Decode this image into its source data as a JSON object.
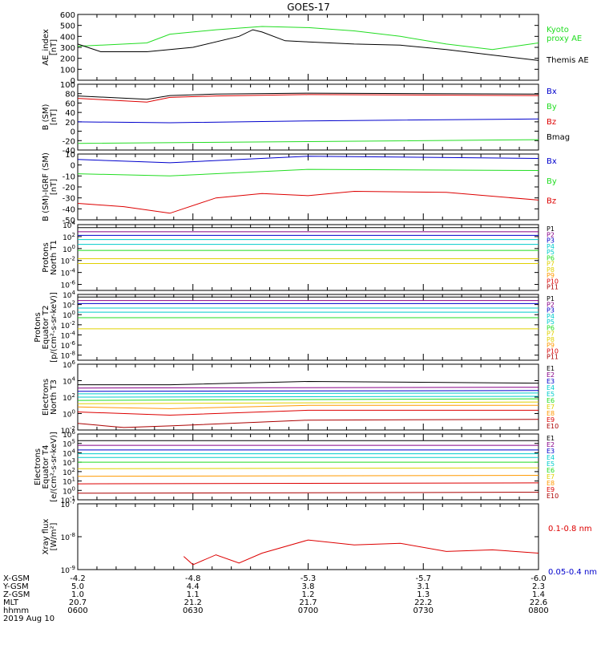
{
  "title": "GOES-17",
  "x_ticks": [
    "0600",
    "0630",
    "0700",
    "0730",
    "0800"
  ],
  "footer": {
    "rows": [
      {
        "label": "X-GSM",
        "values": [
          "-4.2",
          "-4.8",
          "-5.3",
          "-5.7",
          "-6.0"
        ]
      },
      {
        "label": "Y-GSM",
        "values": [
          "5.0",
          "4.4",
          "3.8",
          "3.1",
          "2.3"
        ]
      },
      {
        "label": "Z-GSM",
        "values": [
          "1.0",
          "1.1",
          "1.2",
          "1.3",
          "1.4"
        ]
      },
      {
        "label": "MLT",
        "values": [
          "20.7",
          "21.2",
          "21.7",
          "22.2",
          "22.6"
        ]
      },
      {
        "label": "hhmm",
        "values": [
          "0600",
          "0630",
          "0700",
          "0730",
          "0800"
        ]
      }
    ],
    "date": "2019 Aug 10"
  },
  "colors": {
    "black": "#000000",
    "green": "#22dd22",
    "blue": "#0000cc",
    "red": "#dd0000",
    "purple": "#880088",
    "cyan": "#00cccc",
    "yellow": "#e0d000",
    "orange": "#ff9900",
    "dkred": "#aa0000"
  },
  "chart_data": [
    {
      "type": "line",
      "ylabel": "AE_index\n[nT]",
      "ylim": [
        0,
        600
      ],
      "yticks": [
        "600",
        "500",
        "400",
        "300",
        "200",
        "100",
        "0"
      ],
      "series": [
        {
          "name": "Kyoto\nproxy AE",
          "color": "#22dd22",
          "x": [
            0,
            0.05,
            0.15,
            0.2,
            0.3,
            0.4,
            0.5,
            0.6,
            0.7,
            0.8,
            0.9,
            1
          ],
          "values": [
            310,
            320,
            340,
            420,
            460,
            490,
            480,
            450,
            400,
            330,
            280,
            340
          ]
        },
        {
          "name": "Themis AE",
          "color": "#000000",
          "x": [
            0,
            0.05,
            0.15,
            0.25,
            0.35,
            0.38,
            0.4,
            0.45,
            0.5,
            0.6,
            0.7,
            0.8,
            0.9,
            1
          ],
          "values": [
            330,
            260,
            260,
            300,
            400,
            460,
            440,
            360,
            350,
            330,
            320,
            280,
            230,
            180
          ]
        }
      ]
    },
    {
      "type": "line",
      "ylabel": "B (SM)\n[nT]",
      "ylim": [
        -40,
        100
      ],
      "yticks": [
        "100",
        "80",
        "60",
        "40",
        "20",
        "0",
        "-20",
        "-40"
      ],
      "series": [
        {
          "name": "Bx",
          "color": "#0000cc",
          "x": [
            0,
            0.2,
            0.5,
            1
          ],
          "values": [
            20,
            18,
            22,
            26
          ]
        },
        {
          "name": "By",
          "color": "#22dd22",
          "x": [
            0,
            0.5,
            1
          ],
          "values": [
            -26,
            -22,
            -18
          ]
        },
        {
          "name": "Bz",
          "color": "#dd0000",
          "x": [
            0,
            0.15,
            0.2,
            0.3,
            0.5,
            1
          ],
          "values": [
            70,
            62,
            72,
            75,
            78,
            76
          ]
        },
        {
          "name": "Bmag",
          "color": "#000000",
          "x": [
            0,
            0.15,
            0.2,
            0.3,
            0.5,
            1
          ],
          "values": [
            75,
            68,
            76,
            79,
            81,
            79
          ]
        }
      ]
    },
    {
      "type": "line",
      "ylabel": "B (SM)-IGRF (SM)\n[nT]",
      "ylim": [
        -50,
        10
      ],
      "yticks": [
        "10",
        "0",
        "-10",
        "-20",
        "-30",
        "-40",
        "-50"
      ],
      "series": [
        {
          "name": "Bx",
          "color": "#0000cc",
          "x": [
            0,
            0.2,
            0.5,
            1
          ],
          "values": [
            5,
            2,
            8,
            6
          ]
        },
        {
          "name": "By",
          "color": "#22dd22",
          "x": [
            0,
            0.2,
            0.5,
            1
          ],
          "values": [
            -8,
            -10,
            -4,
            -5
          ]
        },
        {
          "name": "Bz",
          "color": "#dd0000",
          "x": [
            0,
            0.1,
            0.2,
            0.3,
            0.4,
            0.5,
            0.6,
            0.8,
            1
          ],
          "values": [
            -35,
            -38,
            -44,
            -30,
            -26,
            -28,
            -24,
            -25,
            -32
          ]
        }
      ]
    },
    {
      "type": "line",
      "ylabel": "Protons\nNorth T1",
      "log": true,
      "ylim": [
        -7,
        4
      ],
      "yticks": [
        "10^4",
        "10^2",
        "10^0",
        "10^-2",
        "10^-4",
        "10^-6"
      ],
      "series": [
        {
          "name": "P1",
          "color": "#000000",
          "values": [
            3.5,
            3.5
          ]
        },
        {
          "name": "P2",
          "color": "#880088",
          "values": [
            2.8,
            2.8
          ]
        },
        {
          "name": "P3",
          "color": "#0000cc",
          "values": [
            2.2,
            2.2
          ]
        },
        {
          "name": "P4",
          "color": "#00cccc",
          "values": [
            1.5,
            1.5
          ]
        },
        {
          "name": "P5",
          "color": "#00cccc",
          "values": [
            0.7,
            0.7
          ]
        },
        {
          "name": "P6",
          "color": "#22dd22",
          "values": [
            -0.3,
            -0.3
          ]
        },
        {
          "name": "P7",
          "color": "#e0d000",
          "values": [
            -1.7,
            -1.7
          ]
        },
        {
          "name": "P8",
          "color": "#e0d000",
          "values": [
            -2.5,
            -2.5
          ]
        },
        {
          "name": "P9",
          "color": "#ff9900",
          "values": [
            -8,
            -8
          ]
        },
        {
          "name": "P10",
          "color": "#dd0000",
          "values": [
            -8,
            -8
          ]
        },
        {
          "name": "P11",
          "color": "#aa0000",
          "values": [
            -8,
            -8
          ]
        }
      ]
    },
    {
      "type": "line",
      "ylabel": "Protons\nEquator T2\n[p/(cm²-s-sr-keV)]",
      "log": true,
      "ylim": [
        -9,
        4
      ],
      "yticks": [
        "10^4",
        "10^2",
        "10^0",
        "10^-2",
        "10^-4",
        "10^-6",
        "10^-8"
      ],
      "series": [
        {
          "name": "P1",
          "color": "#000000",
          "values": [
            3.5,
            3.5
          ]
        },
        {
          "name": "P2",
          "color": "#880088",
          "values": [
            2.8,
            2.8
          ]
        },
        {
          "name": "P3",
          "color": "#0000cc",
          "values": [
            2.2,
            2.2
          ]
        },
        {
          "name": "P4",
          "color": "#00cccc",
          "values": [
            1.3,
            1.3
          ]
        },
        {
          "name": "P5",
          "color": "#00cccc",
          "values": [
            0.5,
            0.5
          ]
        },
        {
          "name": "P6",
          "color": "#22dd22",
          "values": [
            -0.6,
            -0.6
          ]
        },
        {
          "name": "P7",
          "color": "#e0d000",
          "values": [
            -2.8,
            -2.8
          ]
        },
        {
          "name": "P8",
          "color": "#e0d000",
          "values": [
            -10,
            -10
          ]
        },
        {
          "name": "P9",
          "color": "#ff9900",
          "values": [
            -10,
            -10
          ]
        },
        {
          "name": "P10",
          "color": "#dd0000",
          "values": [
            -10,
            -10
          ]
        },
        {
          "name": "P11",
          "color": "#aa0000",
          "values": [
            -10,
            -10
          ]
        }
      ]
    },
    {
      "type": "line",
      "ylabel": "Electrons\nNorth T3",
      "log": true,
      "ylim": [
        -2,
        6
      ],
      "yticks": [
        "10^6",
        "10^4",
        "10^2",
        "10^0",
        "10^-2"
      ],
      "series": [
        {
          "name": "E1",
          "color": "#000000",
          "x": [
            0,
            0.2,
            0.5,
            1
          ],
          "values": [
            3.5,
            3.5,
            3.9,
            3.7
          ]
        },
        {
          "name": "E2",
          "color": "#880088",
          "values": [
            3.1,
            3.2
          ]
        },
        {
          "name": "E3",
          "color": "#0000cc",
          "values": [
            2.7,
            2.8
          ]
        },
        {
          "name": "E4",
          "color": "#00cccc",
          "values": [
            2.4,
            2.5
          ]
        },
        {
          "name": "E5",
          "color": "#00cccc",
          "values": [
            2.0,
            2.1
          ]
        },
        {
          "name": "E6",
          "color": "#22dd22",
          "values": [
            1.6,
            1.8
          ]
        },
        {
          "name": "E7",
          "color": "#e0d000",
          "values": [
            1.2,
            1.4
          ]
        },
        {
          "name": "E8",
          "color": "#ff9900",
          "x": [
            0,
            0.2,
            0.5,
            1
          ],
          "values": [
            0.8,
            0.6,
            1.0,
            1.0
          ]
        },
        {
          "name": "E9",
          "color": "#dd0000",
          "x": [
            0,
            0.2,
            0.5,
            1
          ],
          "values": [
            0.2,
            -0.2,
            0.4,
            0.4
          ]
        },
        {
          "name": "E10",
          "color": "#aa0000",
          "x": [
            0,
            0.1,
            0.2,
            0.5,
            1
          ],
          "values": [
            -1.2,
            -1.7,
            -1.5,
            -0.8,
            -0.7
          ]
        }
      ]
    },
    {
      "type": "line",
      "ylabel": "Electrons\nEquator T4\n[e/(cm²-s-sr-keV)]",
      "log": true,
      "ylim": [
        -1,
        6
      ],
      "yticks": [
        "10^6",
        "10^5",
        "10^4",
        "10^3",
        "10^2",
        "10^1",
        "10^0",
        "10^-1"
      ],
      "series": [
        {
          "name": "E1",
          "color": "#000000",
          "values": [
            5.3,
            5.3
          ]
        },
        {
          "name": "E2",
          "color": "#880088",
          "values": [
            4.8,
            4.8
          ]
        },
        {
          "name": "E3",
          "color": "#0000cc",
          "values": [
            4.3,
            4.3
          ]
        },
        {
          "name": "E4",
          "color": "#00cccc",
          "values": [
            3.9,
            3.9
          ]
        },
        {
          "name": "E5",
          "color": "#00cccc",
          "values": [
            3.5,
            3.5
          ]
        },
        {
          "name": "E6",
          "color": "#22dd22",
          "values": [
            3.0,
            3.0
          ]
        },
        {
          "name": "E7",
          "color": "#e0d000",
          "values": [
            2.3,
            2.4
          ]
        },
        {
          "name": "E8",
          "color": "#ff9900",
          "values": [
            1.5,
            1.6
          ]
        },
        {
          "name": "E9",
          "color": "#dd0000",
          "values": [
            0.7,
            0.8
          ]
        },
        {
          "name": "E10",
          "color": "#aa0000",
          "values": [
            -0.3,
            -0.2
          ]
        }
      ]
    },
    {
      "type": "line",
      "ylabel": "Xray flux\n[W/m²]",
      "log": true,
      "ylim": [
        -9,
        -7
      ],
      "yticks": [
        "10^-7",
        "10^-8",
        "10^-9"
      ],
      "series": [
        {
          "name": "0.1-0.8 nm",
          "color": "#dd0000",
          "x": [
            0.2,
            0.23,
            0.25,
            0.3,
            0.35,
            0.4,
            0.5,
            0.6,
            0.7,
            0.8,
            0.9,
            1
          ],
          "values": [
            -9.1,
            -8.6,
            -8.85,
            -8.55,
            -8.8,
            -8.5,
            -8.1,
            -8.25,
            -8.2,
            -8.45,
            -8.4,
            -8.5
          ]
        },
        {
          "name": "0.05-0.4 nm",
          "color": "#0000cc",
          "x": [],
          "values": []
        }
      ]
    }
  ]
}
